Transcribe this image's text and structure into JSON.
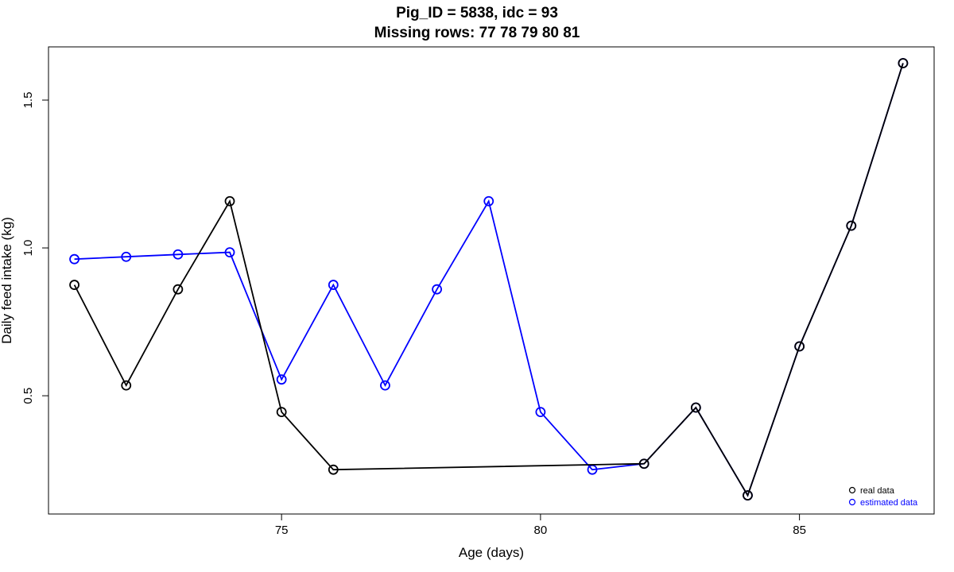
{
  "chart_data": {
    "type": "line",
    "title": "Pig_ID = 5838, idc = 93",
    "subtitle": "Missing rows: 77 78 79 80 81",
    "xlabel": "Age (days)",
    "ylabel": "Daily feed intake (kg)",
    "xlim": [
      70.5,
      87.6
    ],
    "ylim": [
      0.1,
      1.68
    ],
    "x_ticks": [
      75,
      80,
      85
    ],
    "y_ticks": [
      0.5,
      1.0,
      1.5
    ],
    "x_tick_labels": [
      "75",
      "80",
      "85"
    ],
    "y_tick_labels": [
      "0.5",
      "1.0",
      "1.5"
    ],
    "grid": false,
    "legend_position": "bottom-right",
    "series": [
      {
        "name": "real data",
        "color": "#000000",
        "x": [
          71,
          72,
          73,
          74,
          75,
          76,
          82,
          83,
          84,
          85,
          86,
          87
        ],
        "y": [
          0.875,
          0.535,
          0.86,
          1.158,
          0.445,
          0.25,
          0.27,
          0.46,
          0.163,
          0.667,
          1.075,
          1.625
        ]
      },
      {
        "name": "estimated data",
        "color": "#0000ff",
        "x": [
          71,
          72,
          73,
          74,
          75,
          76,
          77,
          78,
          79,
          80,
          81,
          82,
          83,
          84,
          85,
          86,
          87
        ],
        "y": [
          0.962,
          0.97,
          0.978,
          0.985,
          0.555,
          0.875,
          0.535,
          0.86,
          1.158,
          0.445,
          0.25,
          0.27,
          0.46,
          0.163,
          0.667,
          1.075,
          1.625
        ]
      }
    ]
  }
}
